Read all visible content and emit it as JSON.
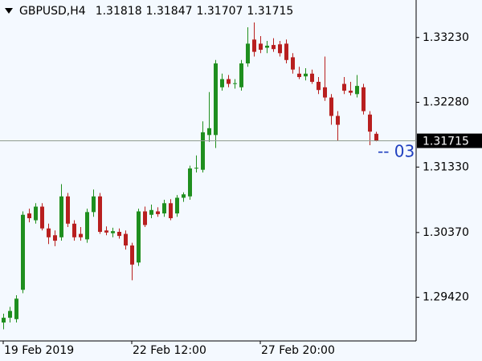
{
  "chart_data": {
    "type": "candlestick",
    "title": "GBPUSD,H4",
    "categories": [
      "19 Feb 2019",
      null,
      null,
      null,
      null,
      null,
      null,
      null,
      null,
      null,
      null,
      null,
      null,
      null,
      null,
      null,
      null,
      null,
      null,
      null,
      "22 Feb 12:00",
      null,
      null,
      null,
      null,
      null,
      null,
      null,
      null,
      null,
      null,
      null,
      null,
      null,
      null,
      null,
      null,
      null,
      null,
      null,
      "27 Feb 20:00",
      null,
      null,
      null,
      null,
      null,
      null,
      null,
      null,
      null,
      null,
      null,
      null,
      null,
      null,
      null,
      null,
      null,
      null
    ],
    "open": [
      1.2905,
      1.2912,
      1.291,
      1.2953,
      1.3065,
      1.3055,
      1.3075,
      1.3043,
      1.3033,
      1.303,
      1.309,
      1.305,
      1.3035,
      1.3027,
      1.3067,
      1.309,
      1.304,
      1.3036,
      1.3038,
      1.3035,
      1.3018,
      1.2993,
      1.3068,
      1.3063,
      1.3068,
      1.3065,
      1.308,
      1.3065,
      1.3088,
      1.309,
      1.3131,
      1.3129,
      1.318,
      1.318,
      1.325,
      1.3262,
      1.3255,
      1.325,
      1.3285,
      1.332,
      1.3314,
      1.3308,
      1.3312,
      1.3313,
      1.3314,
      1.3294,
      1.327,
      1.3266,
      1.327,
      1.3258,
      1.325,
      1.3235,
      1.3208,
      1.3255,
      1.3245,
      1.324,
      1.325,
      1.321,
      1.31818
    ],
    "high": [
      1.2918,
      1.2928,
      1.2945,
      1.3068,
      1.3072,
      1.308,
      1.308,
      1.305,
      1.304,
      1.3108,
      1.3095,
      1.3055,
      1.3045,
      1.3072,
      1.31,
      1.3095,
      1.3046,
      1.3044,
      1.3043,
      1.304,
      1.3022,
      1.3072,
      1.3075,
      1.3078,
      1.3074,
      1.3085,
      1.3086,
      1.3092,
      1.3096,
      1.3135,
      1.315,
      1.32,
      1.3243,
      1.329,
      1.327,
      1.3268,
      1.3262,
      1.329,
      1.3338,
      1.3345,
      1.3325,
      1.3318,
      1.3322,
      1.3318,
      1.332,
      1.33,
      1.328,
      1.3278,
      1.3276,
      1.3265,
      1.3295,
      1.324,
      1.3215,
      1.3265,
      1.3258,
      1.3268,
      1.3255,
      1.3215,
      1.31847
    ],
    "low": [
      1.2895,
      1.2905,
      1.2905,
      1.2948,
      1.3052,
      1.305,
      1.304,
      1.302,
      1.3017,
      1.3025,
      1.3045,
      1.3025,
      1.3025,
      1.3022,
      1.306,
      1.3035,
      1.3033,
      1.303,
      1.3028,
      1.3012,
      1.2967,
      1.2988,
      1.3045,
      1.3058,
      1.306,
      1.306,
      1.3055,
      1.306,
      1.3082,
      1.3085,
      1.3125,
      1.3125,
      1.317,
      1.3161,
      1.3245,
      1.325,
      1.3248,
      1.3245,
      1.328,
      1.3295,
      1.33,
      1.33,
      1.3302,
      1.3295,
      1.3285,
      1.327,
      1.3262,
      1.326,
      1.3255,
      1.324,
      1.323,
      1.3195,
      1.3172,
      1.324,
      1.3238,
      1.3235,
      1.321,
      1.3165,
      1.31707
    ],
    "close": [
      1.2912,
      1.2922,
      1.294,
      1.3063,
      1.3058,
      1.3075,
      1.3043,
      1.303,
      1.3025,
      1.309,
      1.305,
      1.303,
      1.303,
      1.3067,
      1.309,
      1.3038,
      1.3037,
      1.3039,
      1.3032,
      1.3018,
      1.299,
      1.3068,
      1.3048,
      1.307,
      1.3064,
      1.308,
      1.3058,
      1.3088,
      1.3093,
      1.3131,
      1.3132,
      1.3184,
      1.319,
      1.3285,
      1.3262,
      1.3255,
      1.3256,
      1.3285,
      1.3314,
      1.3302,
      1.3305,
      1.3311,
      1.3306,
      1.33,
      1.329,
      1.3276,
      1.3265,
      1.327,
      1.3258,
      1.3246,
      1.3235,
      1.3208,
      1.3195,
      1.3245,
      1.3242,
      1.3252,
      1.3215,
      1.3185,
      1.31715
    ],
    "bull_color": "#1f8f1f",
    "bear_color": "#b81f1f",
    "ylim": [
      1.2878,
      1.3378
    ],
    "yticks": [
      {
        "value": 1.2942,
        "label": "1.29420"
      },
      {
        "value": 1.3037,
        "label": "1.30370"
      },
      {
        "value": 1.3133,
        "label": "1.31330"
      },
      {
        "value": 1.3228,
        "label": "1.32280"
      },
      {
        "value": 1.3323,
        "label": "1.33230"
      }
    ],
    "price_line": true,
    "annotation": "-- 03"
  }
}
